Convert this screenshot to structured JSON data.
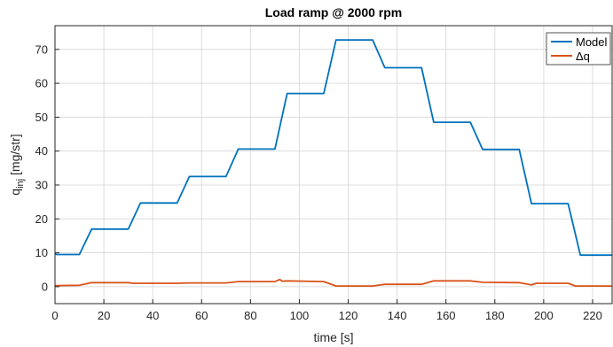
{
  "chart_data": {
    "type": "line",
    "title": "Load ramp @ 2000 rpm",
    "xlabel": "time [s]",
    "ylabel": "q",
    "ylabel_subscript": "inj",
    "ylabel_unit": " [mg/str]",
    "xlim": [
      0,
      228
    ],
    "ylim": [
      -5,
      77
    ],
    "xticks": [
      0,
      20,
      40,
      60,
      80,
      100,
      120,
      140,
      160,
      180,
      200,
      220
    ],
    "yticks": [
      0,
      10,
      20,
      30,
      40,
      50,
      60,
      70
    ],
    "grid": true,
    "legend_position": "top-right",
    "series": [
      {
        "name": "Model",
        "color": "#0072bd",
        "points": [
          [
            0,
            10
          ],
          [
            0.5,
            9.5
          ],
          [
            10,
            9.5
          ],
          [
            15,
            17
          ],
          [
            30,
            17
          ],
          [
            35,
            24.7
          ],
          [
            50,
            24.7
          ],
          [
            55,
            32.5
          ],
          [
            70,
            32.5
          ],
          [
            75,
            40.6
          ],
          [
            90,
            40.6
          ],
          [
            95,
            57
          ],
          [
            110,
            57
          ],
          [
            115,
            72.8
          ],
          [
            130,
            72.8
          ],
          [
            135,
            64.6
          ],
          [
            150,
            64.6
          ],
          [
            155,
            48.5
          ],
          [
            170,
            48.5
          ],
          [
            175,
            40.5
          ],
          [
            190,
            40.5
          ],
          [
            195,
            24.5
          ],
          [
            210,
            24.5
          ],
          [
            215,
            9.3
          ],
          [
            228,
            9.3
          ]
        ]
      },
      {
        "name": "Δq",
        "color": "#d95319",
        "points": [
          [
            0,
            0.3
          ],
          [
            10,
            0.4
          ],
          [
            15,
            1.2
          ],
          [
            30,
            1.2
          ],
          [
            32,
            1.0
          ],
          [
            50,
            1.0
          ],
          [
            55,
            1.1
          ],
          [
            70,
            1.1
          ],
          [
            75,
            1.5
          ],
          [
            90,
            1.5
          ],
          [
            92,
            2.1
          ],
          [
            93,
            1.6
          ],
          [
            95,
            1.7
          ],
          [
            110,
            1.5
          ],
          [
            115,
            0.2
          ],
          [
            130,
            0.2
          ],
          [
            135,
            0.7
          ],
          [
            150,
            0.7
          ],
          [
            155,
            1.7
          ],
          [
            170,
            1.7
          ],
          [
            175,
            1.3
          ],
          [
            190,
            1.2
          ],
          [
            195,
            0.5
          ],
          [
            197,
            1.0
          ],
          [
            210,
            1.0
          ],
          [
            213,
            0.2
          ],
          [
            228,
            0.2
          ]
        ]
      }
    ]
  }
}
